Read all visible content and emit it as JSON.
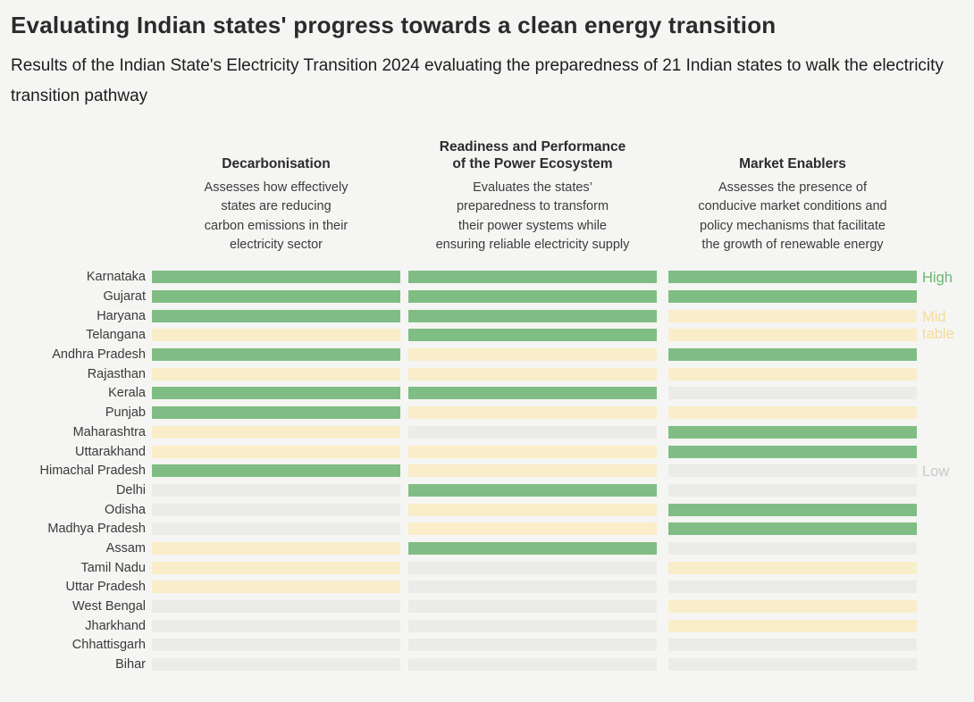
{
  "title": "Evaluating Indian states' progress towards a clean energy transition",
  "subtitle": "Results of the Indian State's Electricity Transition 2024 evaluating the preparedness of 21 Indian states to walk the electricity transition pathway",
  "colors": {
    "background": "#f5f5f3",
    "high": "#80bd84",
    "mid": "#f9edca",
    "low": "#ebebea",
    "high_label_text": "#6cb671",
    "mid_label_text": "#f4dc98",
    "low_label_text": "#c9c9c9"
  },
  "chart_data": {
    "type": "heatmap",
    "title": "Evaluating Indian states' progress towards a clean energy transition",
    "subtitle": "Results of the Indian State's Electricity Transition 2024 evaluating the preparedness of 21 Indian states to walk the electricity transition pathway",
    "legend_position": "right",
    "levels": [
      "high",
      "mid",
      "low"
    ],
    "level_colors": {
      "high": "#80bd84",
      "mid": "#f9edca",
      "low": "#ebebea"
    },
    "columns": [
      {
        "title": "Decarbonisation",
        "description": "Assesses how effectively\nstates are reducing\ncarbon emissions in their\nelectricity sector"
      },
      {
        "title": "Readiness and Performance\nof the Power Ecosystem",
        "description": "Evaluates the states’\npreparedness to transform\ntheir power systems while\nensuring reliable electricity supply"
      },
      {
        "title": "Market Enablers",
        "description": "Assesses the presence of\nconducive market conditions and\npolicy mechanisms that facilitate\nthe growth of  renewable energy"
      }
    ],
    "annotations": [
      {
        "label": "High",
        "level": "high",
        "aligned_row": "Karnataka"
      },
      {
        "label": "Mid table",
        "level": "mid",
        "aligned_row": "Haryana"
      },
      {
        "label": "Low",
        "level": "low",
        "aligned_row": "Himachal Pradesh"
      }
    ],
    "rows": [
      {
        "state": "Karnataka",
        "scores": [
          "high",
          "high",
          "high"
        ]
      },
      {
        "state": "Gujarat",
        "scores": [
          "high",
          "high",
          "high"
        ]
      },
      {
        "state": "Haryana",
        "scores": [
          "high",
          "high",
          "mid"
        ]
      },
      {
        "state": "Telangana",
        "scores": [
          "mid",
          "high",
          "mid"
        ]
      },
      {
        "state": "Andhra Pradesh",
        "scores": [
          "high",
          "mid",
          "high"
        ]
      },
      {
        "state": "Rajasthan",
        "scores": [
          "mid",
          "mid",
          "mid"
        ]
      },
      {
        "state": "Kerala",
        "scores": [
          "high",
          "high",
          "low"
        ]
      },
      {
        "state": "Punjab",
        "scores": [
          "high",
          "mid",
          "mid"
        ]
      },
      {
        "state": "Maharashtra",
        "scores": [
          "mid",
          "low",
          "high"
        ]
      },
      {
        "state": "Uttarakhand",
        "scores": [
          "mid",
          "mid",
          "high"
        ]
      },
      {
        "state": "Himachal Pradesh",
        "scores": [
          "high",
          "mid",
          "low"
        ]
      },
      {
        "state": "Delhi",
        "scores": [
          "low",
          "high",
          "low"
        ]
      },
      {
        "state": "Odisha",
        "scores": [
          "low",
          "mid",
          "high"
        ]
      },
      {
        "state": "Madhya Pradesh",
        "scores": [
          "low",
          "mid",
          "high"
        ]
      },
      {
        "state": "Assam",
        "scores": [
          "mid",
          "high",
          "low"
        ]
      },
      {
        "state": "Tamil Nadu",
        "scores": [
          "mid",
          "low",
          "mid"
        ]
      },
      {
        "state": "Uttar Pradesh",
        "scores": [
          "mid",
          "low",
          "low"
        ]
      },
      {
        "state": "West Bengal",
        "scores": [
          "low",
          "low",
          "mid"
        ]
      },
      {
        "state": "Jharkhand",
        "scores": [
          "low",
          "low",
          "mid"
        ]
      },
      {
        "state": "Chhattisgarh",
        "scores": [
          "low",
          "low",
          "low"
        ]
      },
      {
        "state": "Bihar",
        "scores": [
          "low",
          "low",
          "low"
        ]
      }
    ]
  }
}
